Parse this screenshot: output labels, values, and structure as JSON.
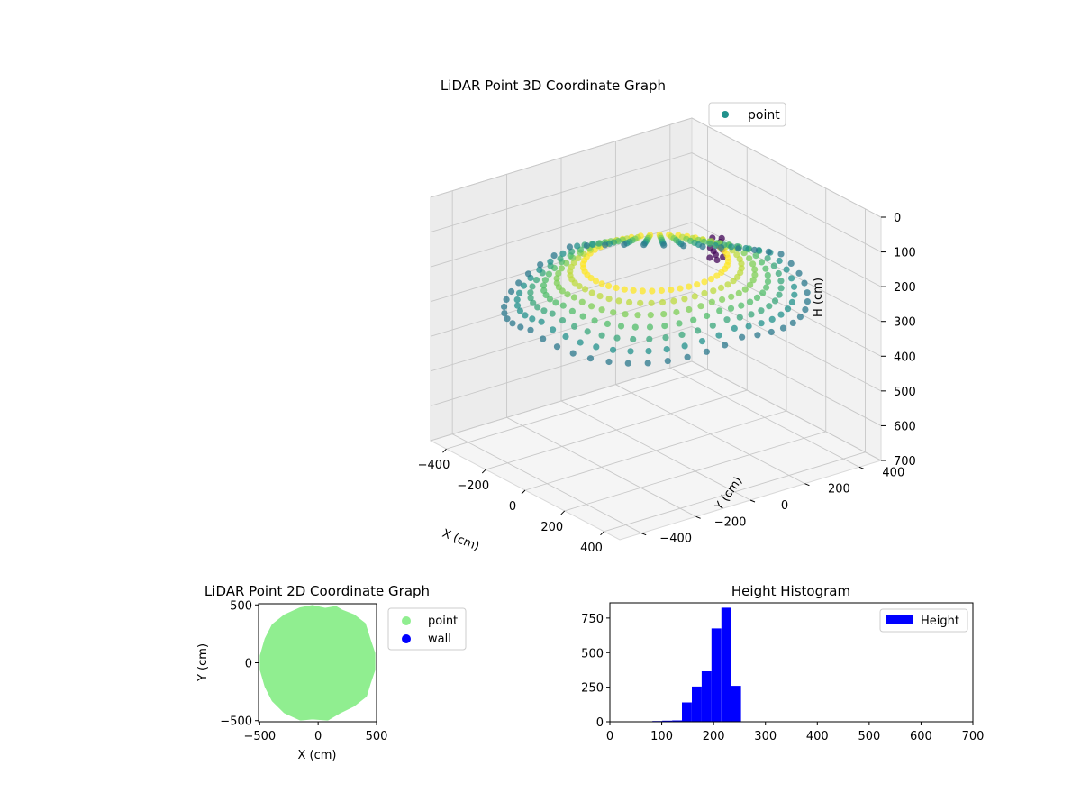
{
  "chart_data": [
    {
      "type": "scatter3d",
      "title": "LiDAR Point 3D Coordinate Graph",
      "xlabel": "X (cm)",
      "ylabel": "Y (cm)",
      "zlabel": "H (cm)",
      "xticks": [
        -400,
        -200,
        0,
        200,
        400
      ],
      "yticks": [
        -400,
        -200,
        0,
        200,
        400
      ],
      "zticks": [
        0,
        100,
        200,
        300,
        400,
        500,
        600,
        700
      ],
      "xlim": [
        -480,
        480
      ],
      "ylim": [
        -480,
        480
      ],
      "zlim": [
        0,
        700
      ],
      "z_inverted": true,
      "legend": [
        {
          "label": "point",
          "color": "#21918c"
        }
      ],
      "legend_position": "upper right",
      "colormap": "viridis",
      "grid": true,
      "series": [
        {
          "name": "point",
          "description_of_shape": "ring of points spanning x,y from about -400 to 450 cm at heights about 150-280 cm, plus a small cluster near x≈100, y≈150 at about 100 cm",
          "ring": {
            "radius_range": [
              220,
              460
            ],
            "height_range": [
              160,
              280
            ],
            "count_angles": 48,
            "count_rings": 7
          },
          "cluster": {
            "center": [
              100,
              150,
              100
            ],
            "count": 12
          }
        }
      ]
    },
    {
      "type": "scatter",
      "title": "LiDAR Point 2D Coordinate Graph",
      "xlabel": "X (cm)",
      "ylabel": "Y (cm)",
      "xticks": [
        -500,
        0,
        500
      ],
      "yticks": [
        -500,
        0,
        500
      ],
      "xlim": [
        -510,
        500
      ],
      "ylim": [
        -510,
        510
      ],
      "legend": [
        {
          "label": "point",
          "color": "#90ee90"
        },
        {
          "label": "wall",
          "color": "#0000ff"
        }
      ],
      "legend_position": "outside right",
      "series": [
        {
          "name": "point",
          "color": "#90ee90",
          "outline": [
            [
              -50,
              480
            ],
            [
              60,
              455
            ],
            [
              150,
              470
            ],
            [
              200,
              440
            ],
            [
              300,
              400
            ],
            [
              390,
              330
            ],
            [
              430,
              200
            ],
            [
              470,
              80
            ],
            [
              470,
              -60
            ],
            [
              430,
              -180
            ],
            [
              400,
              -280
            ],
            [
              300,
              -360
            ],
            [
              180,
              -420
            ],
            [
              80,
              -480
            ],
            [
              -50,
              -470
            ],
            [
              -150,
              -480
            ],
            [
              -280,
              -420
            ],
            [
              -380,
              -320
            ],
            [
              -440,
              -200
            ],
            [
              -480,
              -60
            ],
            [
              -480,
              60
            ],
            [
              -440,
              200
            ],
            [
              -380,
              320
            ],
            [
              -280,
              400
            ],
            [
              -150,
              460
            ]
          ]
        },
        {
          "name": "wall",
          "color": "#0000ff",
          "values": []
        }
      ]
    },
    {
      "type": "bar",
      "title": "Height Histogram",
      "xlabel": "",
      "ylabel": "",
      "xticks": [
        0,
        100,
        200,
        300,
        400,
        500,
        600,
        700
      ],
      "yticks": [
        0,
        250,
        500,
        750
      ],
      "xlim": [
        0,
        700
      ],
      "ylim": [
        0,
        860
      ],
      "legend": [
        {
          "label": "Height",
          "color": "#0000ff"
        }
      ],
      "legend_position": "upper right",
      "bin_width": 19,
      "series": [
        {
          "name": "Height",
          "color": "#0000ff",
          "bins": [
            {
              "x0": 82,
              "x1": 101,
              "value": 5
            },
            {
              "x0": 101,
              "x1": 120,
              "value": 8
            },
            {
              "x0": 120,
              "x1": 139,
              "value": 10
            },
            {
              "x0": 139,
              "x1": 158,
              "value": 140
            },
            {
              "x0": 158,
              "x1": 177,
              "value": 255
            },
            {
              "x0": 177,
              "x1": 196,
              "value": 365
            },
            {
              "x0": 196,
              "x1": 215,
              "value": 675
            },
            {
              "x0": 215,
              "x1": 234,
              "value": 825
            },
            {
              "x0": 234,
              "x1": 253,
              "value": 260
            },
            {
              "x0": 253,
              "x1": 272,
              "value": 0
            }
          ]
        }
      ]
    }
  ]
}
